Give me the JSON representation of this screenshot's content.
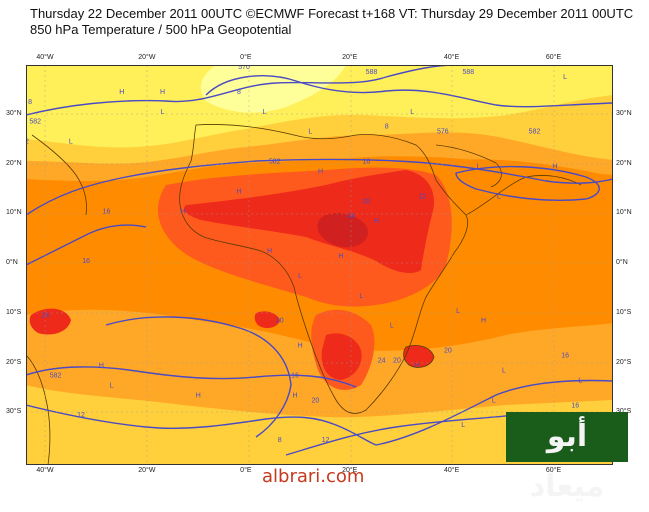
{
  "title_line1": "Thursday 22 December 2011 00UTC ©ECMWF Forecast t+168 VT: Thursday 29 December 2011 00UTC",
  "title_line2": "850 hPa Temperature / 500 hPa Geopotential",
  "axis": {
    "x_top": [
      "40°W",
      "20°W",
      "0°E",
      "20°E",
      "40°E",
      "60°E"
    ],
    "x_bottom": [
      "40°W",
      "20°W",
      "0°E",
      "20°E",
      "40°E",
      "60°E"
    ],
    "y_left": [
      "30°N",
      "20°N",
      "10°N",
      "0°N",
      "10°S",
      "20°S",
      "30°S"
    ],
    "y_right": [
      "30°N",
      "20°N",
      "10°N",
      "0°N",
      "10°S",
      "20°S",
      "30°S"
    ]
  },
  "contour_labels": [
    {
      "text": "570",
      "lon": -1,
      "lat": 39
    },
    {
      "text": "576",
      "lon": 38,
      "lat": 26
    },
    {
      "text": "582",
      "lon": 5,
      "lat": 20
    },
    {
      "text": "582",
      "lon": 56,
      "lat": 26
    },
    {
      "text": "582",
      "lon": -42,
      "lat": 28
    },
    {
      "text": "582",
      "lon": -38,
      "lat": -23
    },
    {
      "text": "588",
      "lon": 43,
      "lat": 38
    },
    {
      "text": "588",
      "lon": 24,
      "lat": 38
    },
    {
      "text": "8",
      "lon": 27,
      "lat": 27
    },
    {
      "text": "8",
      "lon": -2,
      "lat": 34
    },
    {
      "text": "8",
      "lon": -43,
      "lat": 32
    },
    {
      "text": "8",
      "lon": 6,
      "lat": -36
    },
    {
      "text": "12",
      "lon": -44,
      "lat": 24
    },
    {
      "text": "12",
      "lon": 34,
      "lat": 13
    },
    {
      "text": "12",
      "lon": -33,
      "lat": -31
    },
    {
      "text": "12",
      "lon": 15,
      "lat": -36
    },
    {
      "text": "16",
      "lon": 23,
      "lat": 20
    },
    {
      "text": "16",
      "lon": -28,
      "lat": 10
    },
    {
      "text": "16",
      "lon": -32,
      "lat": 0
    },
    {
      "text": "16",
      "lon": 9,
      "lat": -23
    },
    {
      "text": "16",
      "lon": 62,
      "lat": -19
    },
    {
      "text": "16",
      "lon": 64,
      "lat": -29
    },
    {
      "text": "20",
      "lon": 23,
      "lat": 12
    },
    {
      "text": "20",
      "lon": 6,
      "lat": -12
    },
    {
      "text": "20",
      "lon": 29,
      "lat": -20
    },
    {
      "text": "20",
      "lon": 39,
      "lat": -18
    },
    {
      "text": "20",
      "lon": 13,
      "lat": -28
    },
    {
      "text": "24",
      "lon": 20,
      "lat": 9
    },
    {
      "text": "24",
      "lon": -40,
      "lat": -11
    },
    {
      "text": "24",
      "lon": 26,
      "lat": -20
    }
  ],
  "pressure_marks": [
    {
      "text": "H",
      "lon": -25,
      "lat": 34
    },
    {
      "text": "H",
      "lon": -17,
      "lat": 34
    },
    {
      "text": "H",
      "lon": 14,
      "lat": 18
    },
    {
      "text": "H",
      "lon": 60,
      "lat": 19
    },
    {
      "text": "H",
      "lon": -2,
      "lat": 14
    },
    {
      "text": "H",
      "lon": -13,
      "lat": 10
    },
    {
      "text": "H",
      "lon": 25,
      "lat": 8
    },
    {
      "text": "H",
      "lon": 4,
      "lat": 2
    },
    {
      "text": "H",
      "lon": 18,
      "lat": 1
    },
    {
      "text": "H",
      "lon": 10,
      "lat": -17
    },
    {
      "text": "H",
      "lon": -29,
      "lat": -21
    },
    {
      "text": "H",
      "lon": -10,
      "lat": -27
    },
    {
      "text": "H",
      "lon": 9,
      "lat": -27
    },
    {
      "text": "H",
      "lon": 46,
      "lat": -12
    },
    {
      "text": "H",
      "lon": 33,
      "lat": -21
    },
    {
      "text": "L",
      "lon": 38,
      "lat": 40
    },
    {
      "text": "L",
      "lon": 62,
      "lat": 37
    },
    {
      "text": "L",
      "lon": 3,
      "lat": 30
    },
    {
      "text": "L",
      "lon": -45,
      "lat": 20
    },
    {
      "text": "L",
      "lon": -17,
      "lat": 30
    },
    {
      "text": "L",
      "lon": -35,
      "lat": 24
    },
    {
      "text": "L",
      "lon": 12,
      "lat": 26
    },
    {
      "text": "L",
      "lon": 32,
      "lat": 30
    },
    {
      "text": "L",
      "lon": 45,
      "lat": 19
    },
    {
      "text": "L",
      "lon": 49,
      "lat": 13
    },
    {
      "text": "L",
      "lon": 10,
      "lat": -3
    },
    {
      "text": "L",
      "lon": 22,
      "lat": -7
    },
    {
      "text": "L",
      "lon": 41,
      "lat": -10
    },
    {
      "text": "L",
      "lon": 28,
      "lat": -13
    },
    {
      "text": "L",
      "lon": 50,
      "lat": -22
    },
    {
      "text": "L",
      "lon": 65,
      "lat": -24
    },
    {
      "text": "L",
      "lon": -27,
      "lat": -25
    },
    {
      "text": "L",
      "lon": 42,
      "lat": -33
    },
    {
      "text": "L",
      "lon": 48,
      "lat": -28
    },
    {
      "text": "L",
      "lon": 66,
      "lat": -34
    }
  ],
  "watermark": "albrari.com",
  "logo_text": "أبو ميعاد",
  "colors": {
    "t0": "#ffff99",
    "t4": "#fff05a",
    "t8": "#ffd03c",
    "t12": "#ffa828",
    "t16": "#ff8c00",
    "t20": "#ff5a1e",
    "t24": "#ee2a1a",
    "t28": "#d02020",
    "t32": "#b41c28",
    "contour": "#4a4ac4",
    "land": "#5a3a00"
  }
}
